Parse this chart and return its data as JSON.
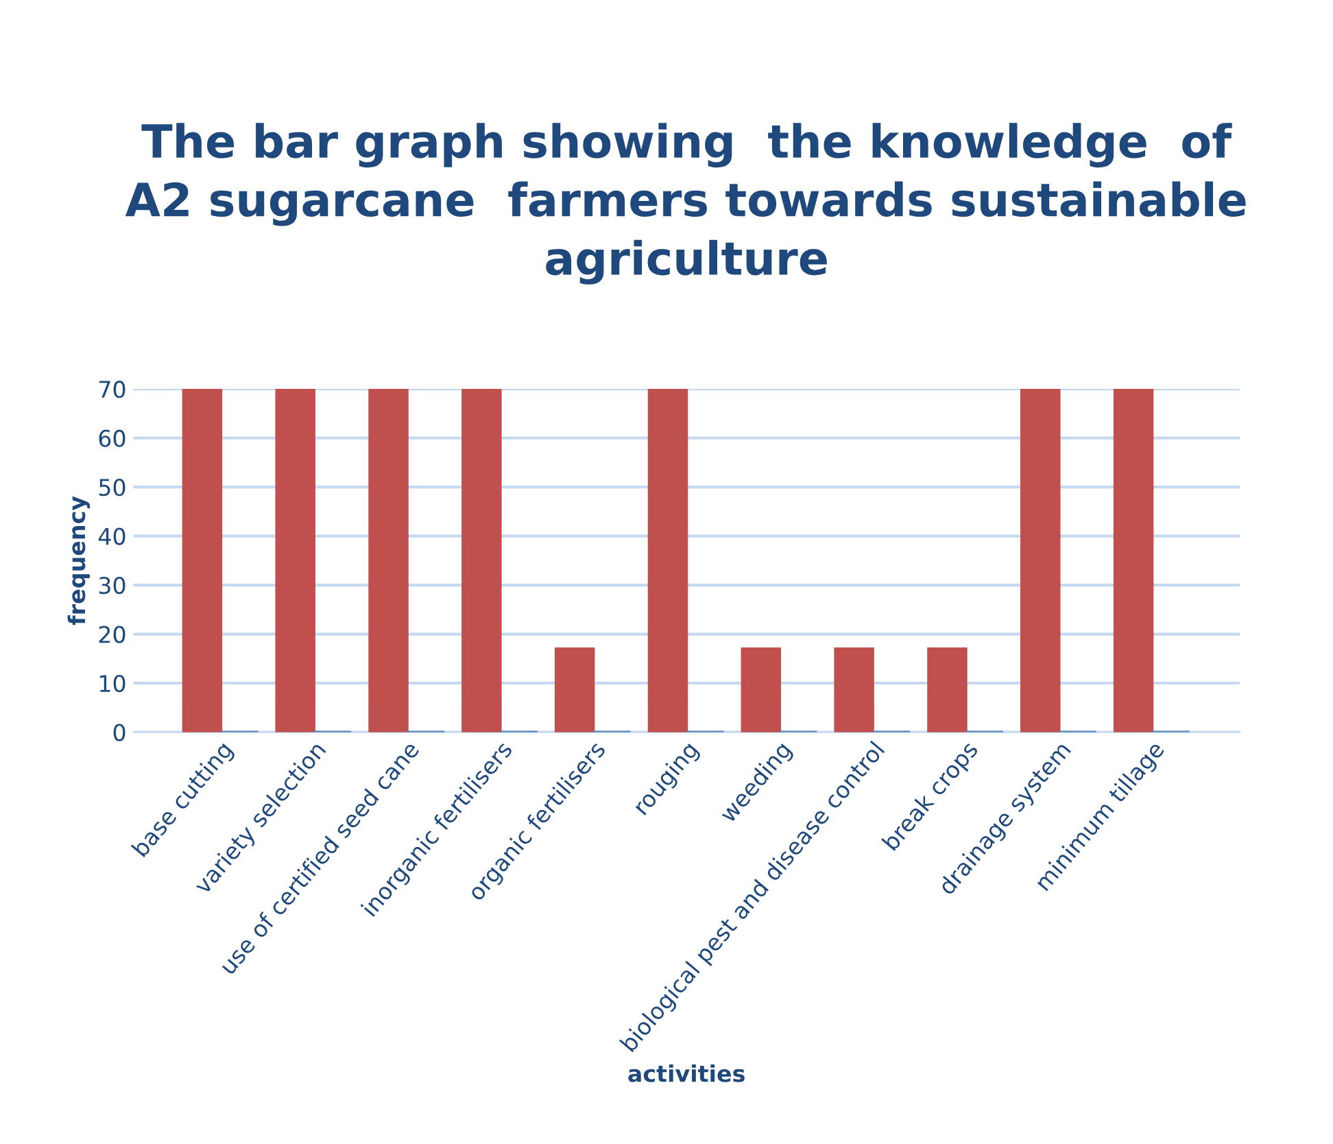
{
  "chart_data": {
    "type": "bar",
    "title": "The bar graph showing  the knowledge  of\nA2 sugarcane  farmers towards sustainable\nagriculture",
    "xlabel": "activities",
    "ylabel": "frequency",
    "categories": [
      "base cutting",
      "variety selection",
      "use of certified seed cane",
      "inorganic fertilisers",
      "organic fertilisers",
      "rouging",
      "weeding",
      "biological pest and disease control",
      "break crops",
      "drainage system",
      "minimum tillage"
    ],
    "series": [
      {
        "color": "#c0504d",
        "values": [
          70,
          70,
          70,
          70,
          17,
          70,
          17,
          17,
          17,
          70,
          70
        ]
      },
      {
        "color": "#4f81bd",
        "values": [
          0,
          0,
          0,
          0,
          0,
          0,
          0,
          0,
          0,
          0,
          0
        ]
      }
    ],
    "ylim": [
      0,
      70
    ],
    "yticks": [
      0,
      10,
      20,
      30,
      40,
      50,
      60,
      70
    ],
    "grid": "y",
    "legend": false
  }
}
